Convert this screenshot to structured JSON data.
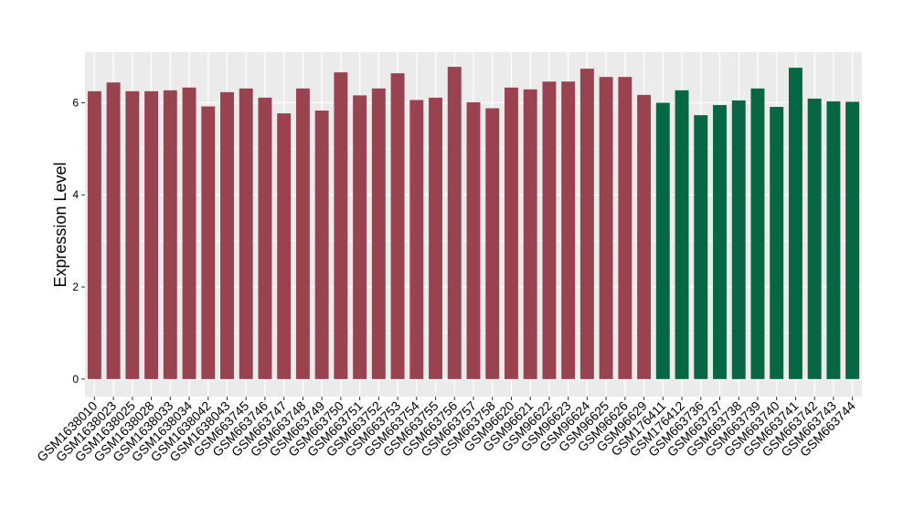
{
  "chart_data": {
    "type": "bar",
    "title": "",
    "xlabel": "",
    "ylabel": "Expression Level",
    "ylim": [
      -0.38,
      7.1
    ],
    "yticks": [
      0,
      2,
      4,
      6
    ],
    "grid": true,
    "legend": "none",
    "background": "#EBEBEB",
    "gridline_color": "#FFFFFF",
    "categories": [
      "GSM1638010",
      "GSM1638023",
      "GSM1638025",
      "GSM1638028",
      "GSM1638033",
      "GSM1638034",
      "GSM1638042",
      "GSM1638043",
      "GSM663745",
      "GSM663746",
      "GSM663747",
      "GSM663748",
      "GSM663749",
      "GSM663750",
      "GSM663751",
      "GSM663752",
      "GSM663753",
      "GSM663754",
      "GSM663755",
      "GSM663756",
      "GSM663757",
      "GSM663758",
      "GSM96620",
      "GSM96621",
      "GSM96622",
      "GSM96623",
      "GSM96624",
      "GSM96625",
      "GSM96626",
      "GSM96629",
      "GSM176411",
      "GSM176412",
      "GSM663736",
      "GSM663737",
      "GSM663738",
      "GSM663739",
      "GSM663740",
      "GSM663741",
      "GSM663742",
      "GSM663743",
      "GSM663744"
    ],
    "values": [
      6.25,
      6.44,
      6.25,
      6.25,
      6.27,
      6.33,
      5.92,
      6.23,
      6.31,
      6.11,
      5.77,
      6.31,
      5.83,
      6.66,
      6.16,
      6.31,
      6.64,
      6.06,
      6.11,
      6.78,
      6.01,
      5.88,
      6.33,
      6.29,
      6.46,
      6.46,
      6.74,
      6.56,
      6.56,
      6.17,
      6.0,
      6.27,
      5.73,
      5.95,
      6.05,
      6.31,
      5.91,
      6.76,
      6.09,
      6.03,
      6.02
    ],
    "groups": [
      1,
      1,
      1,
      1,
      1,
      1,
      1,
      1,
      1,
      1,
      1,
      1,
      1,
      1,
      1,
      1,
      1,
      1,
      1,
      1,
      1,
      1,
      1,
      1,
      1,
      1,
      1,
      1,
      1,
      1,
      2,
      2,
      2,
      2,
      2,
      2,
      2,
      2,
      2,
      2,
      2
    ],
    "group_colors": {
      "1": "#9A4350",
      "2": "#076745"
    }
  }
}
